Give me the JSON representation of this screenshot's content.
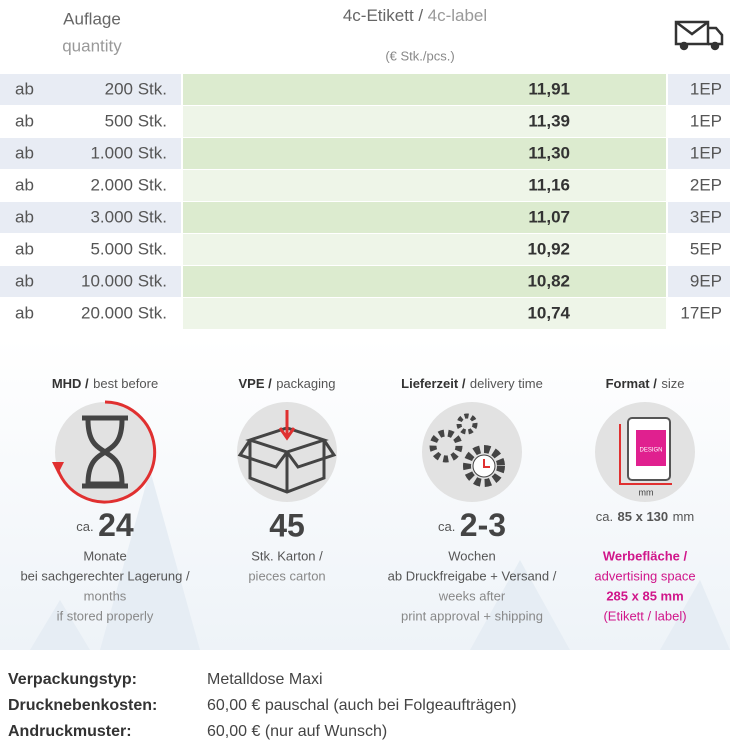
{
  "header": {
    "quantity_de": "Auflage",
    "quantity_en": "quantity",
    "label_de": "4c-Etikett /",
    "label_en": "4c-label",
    "unit": "(€ Stk./pcs.)"
  },
  "table": {
    "rows": [
      [
        "ab",
        "200 Stk.",
        "11,91",
        "1EP"
      ],
      [
        "ab",
        "500 Stk.",
        "11,39",
        "1EP"
      ],
      [
        "ab",
        "1.000 Stk.",
        "11,30",
        "1EP"
      ],
      [
        "ab",
        "2.000 Stk.",
        "11,16",
        "2EP"
      ],
      [
        "ab",
        "3.000 Stk.",
        "11,07",
        "3EP"
      ],
      [
        "ab",
        "5.000 Stk.",
        "10,92",
        "5EP"
      ],
      [
        "ab",
        "10.000 Stk.",
        "10,82",
        "9EP"
      ],
      [
        "ab",
        "20.000 Stk.",
        "10,74",
        "17EP"
      ]
    ]
  },
  "features": [
    {
      "title_de": "MHD /",
      "title_en": "best before",
      "prefix": "ca.",
      "value": "24",
      "lines": [
        "Monate",
        "bei sachgerechter Lagerung /"
      ],
      "lines_en": [
        "months",
        "if stored properly"
      ]
    },
    {
      "title_de": "VPE /",
      "title_en": "packaging",
      "value": "45",
      "lines": [
        "Stk. Karton /"
      ],
      "lines_en": [
        "pieces carton"
      ]
    },
    {
      "title_de": "Lieferzeit /",
      "title_en": "delivery time",
      "prefix": "ca.",
      "value": "2-3",
      "lines": [
        "Wochen",
        "ab Druckfreigabe + Versand /"
      ],
      "lines_en": [
        "weeks after",
        "print approval + shipping"
      ]
    },
    {
      "title_de": "Format /",
      "title_en": "size",
      "icon_label": "DESIGN",
      "icon_unit": "mm",
      "size_prefix": "ca.",
      "size": "85 x 130",
      "size_unit": "mm",
      "area_de": "Werbefläche /",
      "area_en": "advertising space",
      "area_size": "285 x 85 mm",
      "area_note": "(Etikett / label)"
    }
  ],
  "details": [
    [
      "Verpackungstyp:",
      "Metalldose Maxi"
    ],
    [
      "Drucknebenkosten:",
      "60,00 € pauschal (auch bei Folgeaufträgen)"
    ],
    [
      "Andruckmuster:",
      "60,00 € (nur auf Wunsch)"
    ]
  ]
}
